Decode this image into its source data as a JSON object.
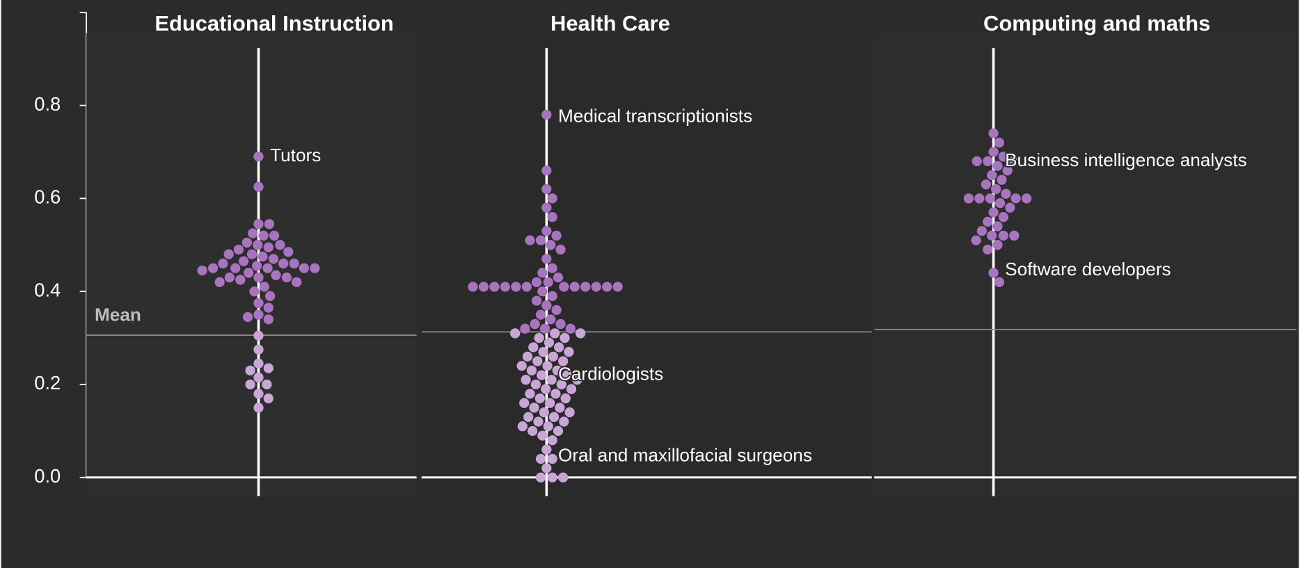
{
  "chart_data": {
    "type": "beeswarm",
    "ylim": [
      -0.04,
      1.0
    ],
    "yticks": [
      {
        "value": 0,
        "label": "0.0"
      },
      0.2,
      0.4,
      0.6,
      0.8
    ],
    "color": "#a974bf",
    "below_mean_color": "#c9a6d6",
    "mean_label": "Mean",
    "panels": [
      {
        "title": "Educational Instruction",
        "mean": 0.306,
        "values": [
          0.69,
          0.625,
          0.545,
          0.545,
          0.525,
          0.52,
          0.52,
          0.505,
          0.5,
          0.5,
          0.495,
          0.49,
          0.485,
          0.48,
          0.48,
          0.475,
          0.47,
          0.465,
          0.46,
          0.46,
          0.46,
          0.455,
          0.45,
          0.45,
          0.45,
          0.45,
          0.45,
          0.445,
          0.44,
          0.435,
          0.43,
          0.43,
          0.43,
          0.425,
          0.42,
          0.42,
          0.41,
          0.4,
          0.39,
          0.375,
          0.365,
          0.35,
          0.345,
          0.34,
          0.305,
          0.275,
          0.245,
          0.235,
          0.23,
          0.215,
          0.2,
          0.2,
          0.18,
          0.17,
          0.15
        ],
        "annotations": [
          {
            "label": "Tutors",
            "value": 0.69
          }
        ]
      },
      {
        "title": "Health Care",
        "mean": 0.313,
        "values": [
          0.78,
          0.66,
          0.62,
          0.6,
          0.58,
          0.56,
          0.53,
          0.52,
          0.51,
          0.51,
          0.5,
          0.49,
          0.47,
          0.45,
          0.44,
          0.43,
          0.42,
          0.42,
          0.41,
          0.41,
          0.41,
          0.41,
          0.41,
          0.41,
          0.41,
          0.41,
          0.41,
          0.41,
          0.41,
          0.41,
          0.4,
          0.39,
          0.38,
          0.37,
          0.36,
          0.35,
          0.34,
          0.33,
          0.33,
          0.32,
          0.32,
          0.32,
          0.31,
          0.31,
          0.31,
          0.3,
          0.3,
          0.29,
          0.28,
          0.28,
          0.27,
          0.27,
          0.26,
          0.26,
          0.25,
          0.25,
          0.24,
          0.24,
          0.23,
          0.23,
          0.22,
          0.22,
          0.21,
          0.21,
          0.21,
          0.2,
          0.2,
          0.19,
          0.19,
          0.18,
          0.18,
          0.17,
          0.17,
          0.16,
          0.16,
          0.15,
          0.15,
          0.14,
          0.14,
          0.13,
          0.13,
          0.12,
          0.12,
          0.11,
          0.11,
          0.1,
          0.1,
          0.09,
          0.08,
          0.06,
          0.04,
          0.04,
          0.02,
          0,
          0,
          0
        ],
        "annotations": [
          {
            "label": "Medical transcriptionists",
            "value": 0.775
          },
          {
            "label": "Cardiologists",
            "value": 0.22
          },
          {
            "label": "Oral and maxillofacial surgeons",
            "value": 0.045
          }
        ]
      },
      {
        "title": "Computing and maths",
        "mean": 0.318,
        "values": [
          0.74,
          0.72,
          0.7,
          0.69,
          0.68,
          0.68,
          0.68,
          0.67,
          0.66,
          0.65,
          0.64,
          0.63,
          0.62,
          0.61,
          0.6,
          0.6,
          0.6,
          0.6,
          0.6,
          0.59,
          0.58,
          0.57,
          0.56,
          0.55,
          0.54,
          0.53,
          0.52,
          0.52,
          0.52,
          0.51,
          0.5,
          0.49,
          0.44,
          0.42
        ],
        "annotations": [
          {
            "label": "Business intelligence analysts",
            "value": 0.68
          },
          {
            "label": "Software developers",
            "value": 0.445
          }
        ]
      }
    ]
  }
}
